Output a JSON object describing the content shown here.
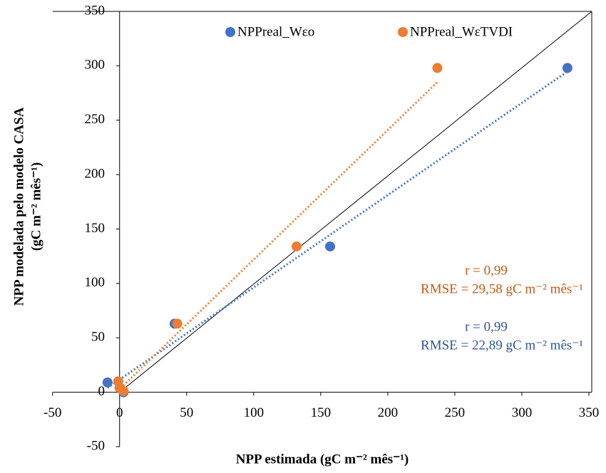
{
  "chart_data": {
    "type": "scatter",
    "xlabel": "NPP estimada (gC m⁻² mês⁻¹)",
    "ylabel": [
      "NPP modelada pelo modelo CASA",
      "(gC m⁻² mês⁻¹)"
    ],
    "xlim": [
      -50,
      350
    ],
    "ylim": [
      -50,
      350
    ],
    "xticks": [
      -50,
      0,
      50,
      100,
      150,
      200,
      250,
      300,
      350
    ],
    "yticks": [
      -50,
      0,
      50,
      100,
      150,
      200,
      250,
      300,
      350
    ],
    "series": [
      {
        "name": "NPPreal_Wεo",
        "color": "#4472c4",
        "x": [
          -9,
          3,
          41,
          157,
          334
        ],
        "values": [
          9,
          0,
          63,
          134,
          298
        ]
      },
      {
        "name": "NPPreal_WεTVDI",
        "color": "#ed7d31",
        "x": [
          -1,
          0,
          3,
          43,
          132,
          237
        ],
        "values": [
          10,
          4,
          1,
          63,
          134,
          298
        ]
      }
    ],
    "annotations": [
      {
        "text": "r = 0,99",
        "color": "#c55a11"
      },
      {
        "text": "RMSE = 29,58 gC m⁻² mês⁻¹",
        "color": "#c55a11"
      },
      {
        "text": "r = 0,99",
        "color": "#2f5597"
      },
      {
        "text": "RMSE = 22,89 gC m⁻² mês⁻¹",
        "color": "#2f5597"
      }
    ]
  }
}
